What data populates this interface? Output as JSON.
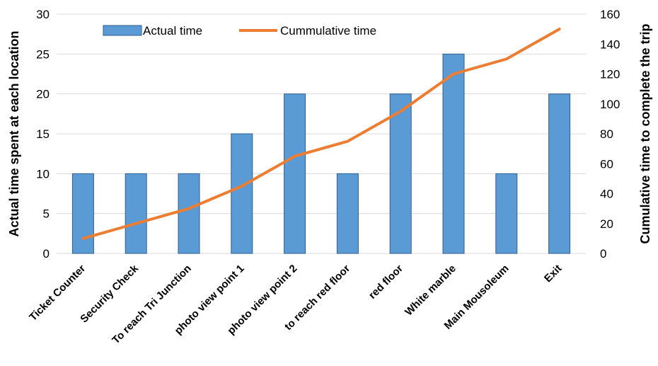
{
  "chart_data": {
    "type": "bar",
    "title": "",
    "categories": [
      "Ticket Counter",
      "Security Check",
      "To reach Tri Junction",
      "photo view point 1",
      "photo view point 2",
      "to reach red floor",
      "red floor",
      "White marble",
      "Main Mousoleum",
      "Exit"
    ],
    "series": [
      {
        "name": "Actual time",
        "type": "bar",
        "axis": "left",
        "color": "#5B9BD5",
        "values": [
          10,
          10,
          10,
          15,
          20,
          10,
          20,
          25,
          10,
          20
        ]
      },
      {
        "name": "Cummulative time",
        "type": "line",
        "axis": "right",
        "color": "#ED7D31",
        "values": [
          10,
          20,
          30,
          45,
          65,
          75,
          95,
          120,
          130,
          150
        ]
      }
    ],
    "ylabel": "Actual time spent at each location",
    "y2label": "Cumulative time to complete the trip",
    "ylim": [
      0,
      30
    ],
    "y2lim": [
      0,
      160
    ],
    "yticks": [
      0,
      5,
      10,
      15,
      20,
      25,
      30
    ],
    "y2ticks": [
      0,
      20,
      40,
      60,
      80,
      100,
      120,
      140,
      160
    ],
    "grid": true,
    "legend_position": "top-left"
  }
}
